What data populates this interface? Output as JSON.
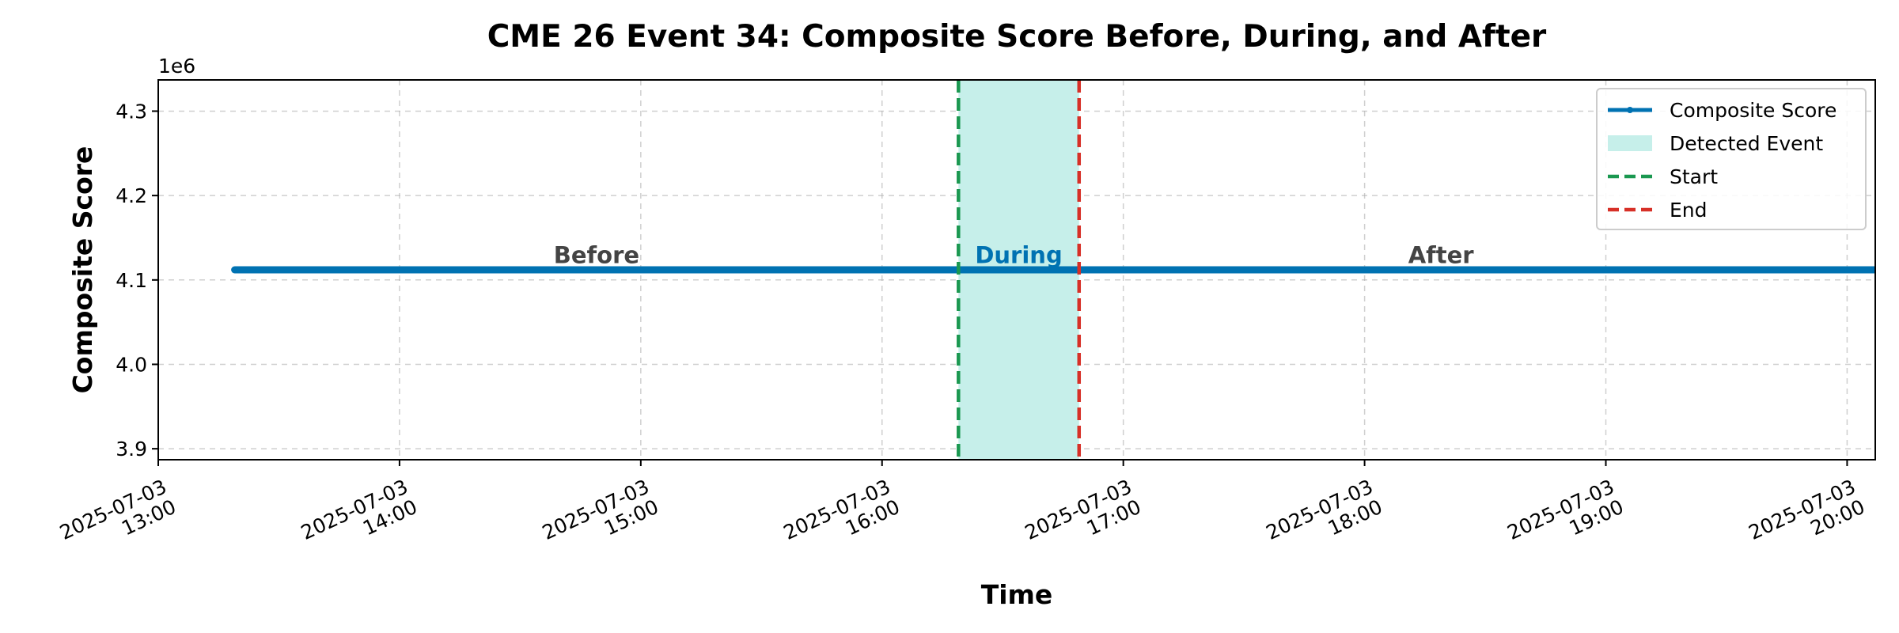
{
  "chart_data": {
    "type": "line",
    "title": "CME 26 Event 34: Composite Score Before, During, and After",
    "xlabel": "Time",
    "ylabel": "Composite Score",
    "y_offset_label": "1e6",
    "y_scale": 1000000,
    "xlim": [
      "2025-07-03 13:00",
      "2025-07-03 20:07"
    ],
    "ylim": [
      3887000,
      4337000
    ],
    "grid": true,
    "x_ticks": [
      {
        "value": "2025-07-03 13:00",
        "label": [
          "2025-07-03",
          "13:00"
        ]
      },
      {
        "value": "2025-07-03 14:00",
        "label": [
          "2025-07-03",
          "14:00"
        ]
      },
      {
        "value": "2025-07-03 15:00",
        "label": [
          "2025-07-03",
          "15:00"
        ]
      },
      {
        "value": "2025-07-03 16:00",
        "label": [
          "2025-07-03",
          "16:00"
        ]
      },
      {
        "value": "2025-07-03 17:00",
        "label": [
          "2025-07-03",
          "17:00"
        ]
      },
      {
        "value": "2025-07-03 18:00",
        "label": [
          "2025-07-03",
          "18:00"
        ]
      },
      {
        "value": "2025-07-03 19:00",
        "label": [
          "2025-07-03",
          "19:00"
        ]
      },
      {
        "value": "2025-07-03 20:00",
        "label": [
          "2025-07-03",
          "20:00"
        ]
      }
    ],
    "y_ticks": [
      {
        "value": 3900000,
        "label": "3.9"
      },
      {
        "value": 4000000,
        "label": "4.0"
      },
      {
        "value": 4100000,
        "label": "4.1"
      },
      {
        "value": 4200000,
        "label": "4.2"
      },
      {
        "value": 4300000,
        "label": "4.3"
      }
    ],
    "series": [
      {
        "name": "Composite Score",
        "color": "#0072B2",
        "x": [
          "2025-07-03 13:19",
          "2025-07-03 20:49"
        ],
        "y": [
          4112000,
          4112000
        ]
      }
    ],
    "event": {
      "start": "2025-07-03 16:19",
      "end": "2025-07-03 16:49",
      "span_color": "#c6efea",
      "start_color": "#1a9850",
      "end_color": "#d73027"
    },
    "phase_labels": [
      {
        "text": "Before",
        "x": "2025-07-03 14:49",
        "y": 4120000,
        "color": "#444444"
      },
      {
        "text": "During",
        "x": "2025-07-03 16:34",
        "y": 4120000,
        "color": "#0072B2"
      },
      {
        "text": "After",
        "x": "2025-07-03 18:19",
        "y": 4120000,
        "color": "#444444"
      }
    ],
    "legend": {
      "position": "top-right",
      "entries": [
        {
          "label": "Composite Score",
          "kind": "line-marker",
          "color": "#0072B2"
        },
        {
          "label": "Detected Event",
          "kind": "patch",
          "color": "#c6efea"
        },
        {
          "label": "Start",
          "kind": "dashed",
          "color": "#1a9850"
        },
        {
          "label": "End",
          "kind": "dashed",
          "color": "#d73027"
        }
      ]
    }
  }
}
